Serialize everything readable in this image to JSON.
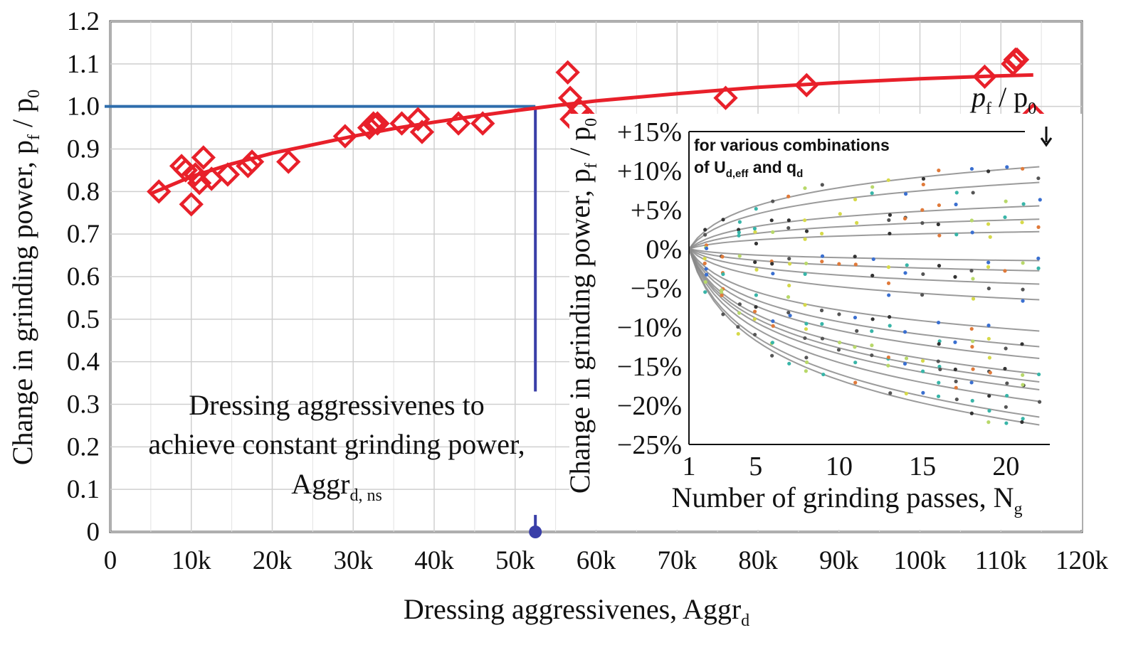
{
  "chart_data": [
    {
      "type": "scatter",
      "title": "",
      "xlabel": "Dressing aggressivenes, Aggr",
      "xlabel_sub": "d",
      "ylabel": "Change in grinding power, p",
      "ylabel_sub_f": "f",
      "ylabel_mid": " / p",
      "ylabel_sub_0": "0",
      "xlim": [
        0,
        120000
      ],
      "ylim": [
        0,
        1.2
      ],
      "x_ticks": [
        0,
        10000,
        20000,
        30000,
        40000,
        50000,
        60000,
        70000,
        80000,
        90000,
        100000,
        110000,
        120000
      ],
      "x_tick_labels": [
        "0",
        "10k",
        "20k",
        "30k",
        "40k",
        "50k",
        "60k",
        "70k",
        "80k",
        "90k",
        "100k",
        "110k",
        "120k"
      ],
      "y_ticks": [
        0,
        0.1,
        0.2,
        0.3,
        0.4,
        0.5,
        0.6,
        0.7,
        0.8,
        0.9,
        1.0,
        1.1,
        1.2
      ],
      "y_tick_labels": [
        "0",
        "0.1",
        "0.2",
        "0.3",
        "0.4",
        "0.5",
        "0.6",
        "0.7",
        "0.8",
        "0.9",
        "1.0",
        "1.1",
        "1.2"
      ],
      "grid": true,
      "series": [
        {
          "marker": "diamond",
          "color": "#e8202a",
          "x": [
            6000,
            8800,
            9300,
            10000,
            10500,
            11000,
            11500,
            12500,
            14500,
            17000,
            17500,
            22000,
            29000,
            32000,
            32500,
            33000,
            36000,
            38000,
            38500,
            43000,
            46000,
            56500,
            56800,
            57000,
            58000,
            59000,
            76000,
            86000,
            108000,
            111500,
            111800,
            112000,
            114000
          ],
          "y": [
            0.8,
            0.86,
            0.85,
            0.77,
            0.84,
            0.82,
            0.88,
            0.83,
            0.84,
            0.86,
            0.87,
            0.87,
            0.93,
            0.95,
            0.96,
            0.96,
            0.96,
            0.97,
            0.94,
            0.96,
            0.96,
            1.08,
            1.02,
            0.97,
            0.99,
            0.97,
            1.02,
            1.05,
            1.07,
            1.1,
            1.11,
            1.11,
            0.98
          ]
        },
        {
          "type": "line",
          "color": "#e8202a",
          "x": [
            5000,
            10000,
            15000,
            20000,
            25000,
            30000,
            35000,
            40000,
            45000,
            50000,
            55000,
            60000,
            70000,
            80000,
            90000,
            100000,
            110000,
            114000
          ],
          "y": [
            0.795,
            0.835,
            0.865,
            0.89,
            0.91,
            0.93,
            0.948,
            0.963,
            0.977,
            0.99,
            1.002,
            1.013,
            1.03,
            1.045,
            1.056,
            1.065,
            1.072,
            1.074
          ]
        }
      ],
      "annotations": {
        "reference_y": 1.0,
        "reference_x": 52500,
        "reference_color": "#2e6dac",
        "vertical_color": "#3a3fa8",
        "text_line1": "Dressing aggressivenes to",
        "text_line2": "achieve constant grinding power,",
        "text_line3": "Aggr",
        "text_line3_sub": "d, ns"
      }
    },
    {
      "type": "line",
      "title": "",
      "xlabel": "Number of grinding passes, N",
      "xlabel_sub": "g",
      "ylabel": "Change in grinding power, p",
      "ylabel_sub_f": "f",
      "ylabel_mid": " / p",
      "ylabel_sub_0": "0",
      "xlim": [
        1,
        22.5
      ],
      "ylim": [
        -25,
        15
      ],
      "x_ticks": [
        1,
        5,
        10,
        15,
        20
      ],
      "x_tick_labels": [
        "1",
        "5",
        "10",
        "15",
        "20"
      ],
      "y_ticks": [
        15,
        10,
        5,
        0,
        -5,
        -10,
        -15,
        -20,
        -25
      ],
      "y_tick_labels": [
        "+15%",
        "+10%",
        "+5%",
        "0%",
        "−5%",
        "−10%",
        "−15%",
        "−20%",
        "−25%"
      ],
      "legend_title_line1": "for various combinations",
      "legend_title_line2": "of U",
      "legend_title_sub1": "d,eff",
      "legend_title_mid": " and q",
      "legend_title_sub2": "d",
      "arrow_label": "p",
      "arrow_label_sub_f": "f",
      "arrow_label_mid": " / p",
      "arrow_label_sub_0": "0",
      "curve_endpoints_at_22": [
        10.5,
        8.5,
        5.5,
        3.8,
        2.2,
        -1.5,
        -2.8,
        -4.5,
        -6.5,
        -10.5,
        -12.5,
        -14.0,
        -16.0,
        -17.0,
        -18.0,
        -19.5,
        -21.5,
        -22.5
      ],
      "dot_colors": [
        "#333333",
        "#555555",
        "#d6d94a",
        "#e07a3a",
        "#3a6fd0",
        "#38b5a8",
        "#b8d86a"
      ]
    }
  ]
}
